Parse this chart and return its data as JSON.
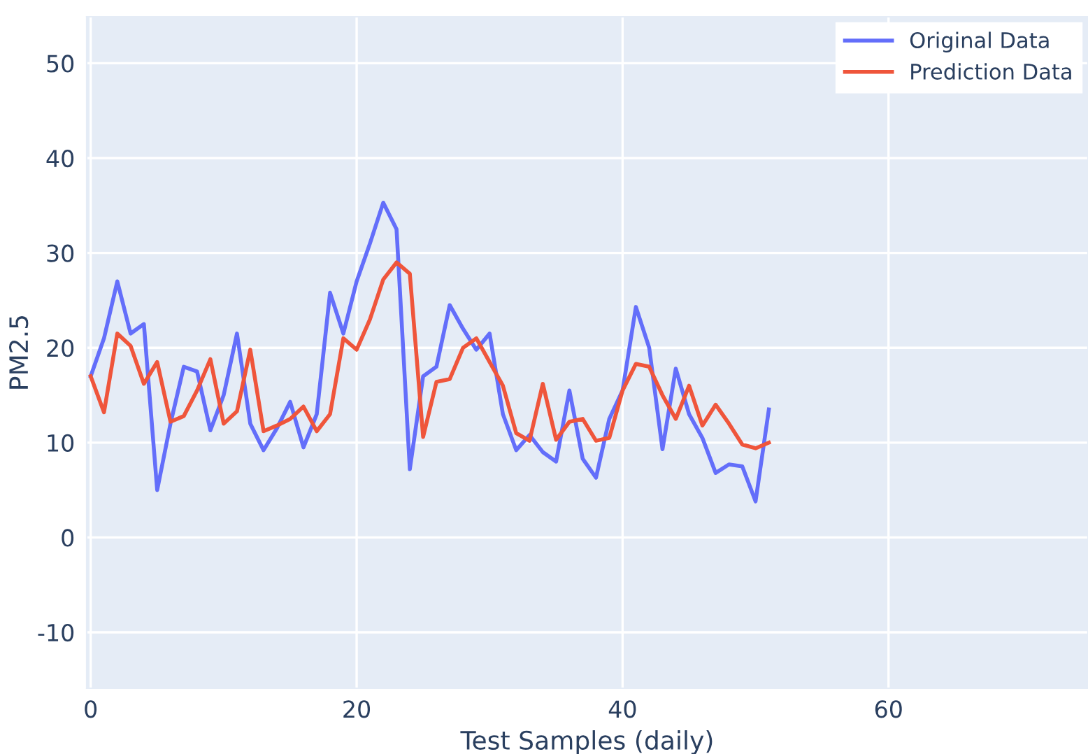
{
  "chart_data": {
    "type": "line",
    "xlabel": "Test Samples (daily)",
    "ylabel": "PM2.5",
    "x": [
      0,
      1,
      2,
      3,
      4,
      5,
      6,
      7,
      8,
      9,
      10,
      11,
      12,
      13,
      14,
      15,
      16,
      17,
      18,
      19,
      20,
      21,
      22,
      23,
      24,
      25,
      26,
      27,
      28,
      29,
      30,
      31,
      32,
      33,
      34,
      35,
      36,
      37,
      38,
      39,
      40,
      41,
      42,
      43,
      44,
      45,
      46,
      47,
      48,
      49,
      50,
      51
    ],
    "series": [
      {
        "name": "Original Data",
        "color": "#636efa",
        "values": [
          17,
          21,
          27,
          21.5,
          22.5,
          5,
          12,
          18,
          17.5,
          11.3,
          15,
          21.5,
          12,
          9.2,
          11.5,
          14.3,
          9.5,
          13,
          25.8,
          21.5,
          27,
          31,
          35.3,
          32.5,
          7.2,
          17,
          18,
          24.5,
          22,
          19.8,
          21.5,
          13,
          9.2,
          10.8,
          9,
          8,
          15.5,
          8.3,
          6.3,
          12.5,
          15.5,
          24.3,
          20,
          9.3,
          17.8,
          13,
          10.5,
          6.8,
          7.7,
          7.5,
          3.8,
          13.5
        ]
      },
      {
        "name": "Prediction Data",
        "color": "#ef553b",
        "values": [
          17,
          13.2,
          21.5,
          20.2,
          16.2,
          18.5,
          12.2,
          12.8,
          15.5,
          18.8,
          12,
          13.3,
          19.8,
          11.2,
          11.8,
          12.5,
          13.8,
          11.2,
          13,
          21,
          19.8,
          23,
          27.2,
          29,
          27.8,
          10.6,
          16.4,
          16.7,
          20,
          21,
          18.5,
          16,
          11,
          10.2,
          16.2,
          10.3,
          12.2,
          12.5,
          10.2,
          10.5,
          15.5,
          18.3,
          18,
          15,
          12.5,
          16,
          11.8,
          14,
          12,
          9.8,
          9.4,
          10
        ]
      }
    ],
    "xlim": [
      -0.3,
      75
    ],
    "ylim": [
      -15.9,
      54.9
    ],
    "xticks": [
      0,
      20,
      40,
      60
    ],
    "yticks": [
      -10,
      0,
      10,
      20,
      30,
      40,
      50
    ],
    "grid": true,
    "legend": "top right",
    "line_style": "solid",
    "marker": "none"
  }
}
